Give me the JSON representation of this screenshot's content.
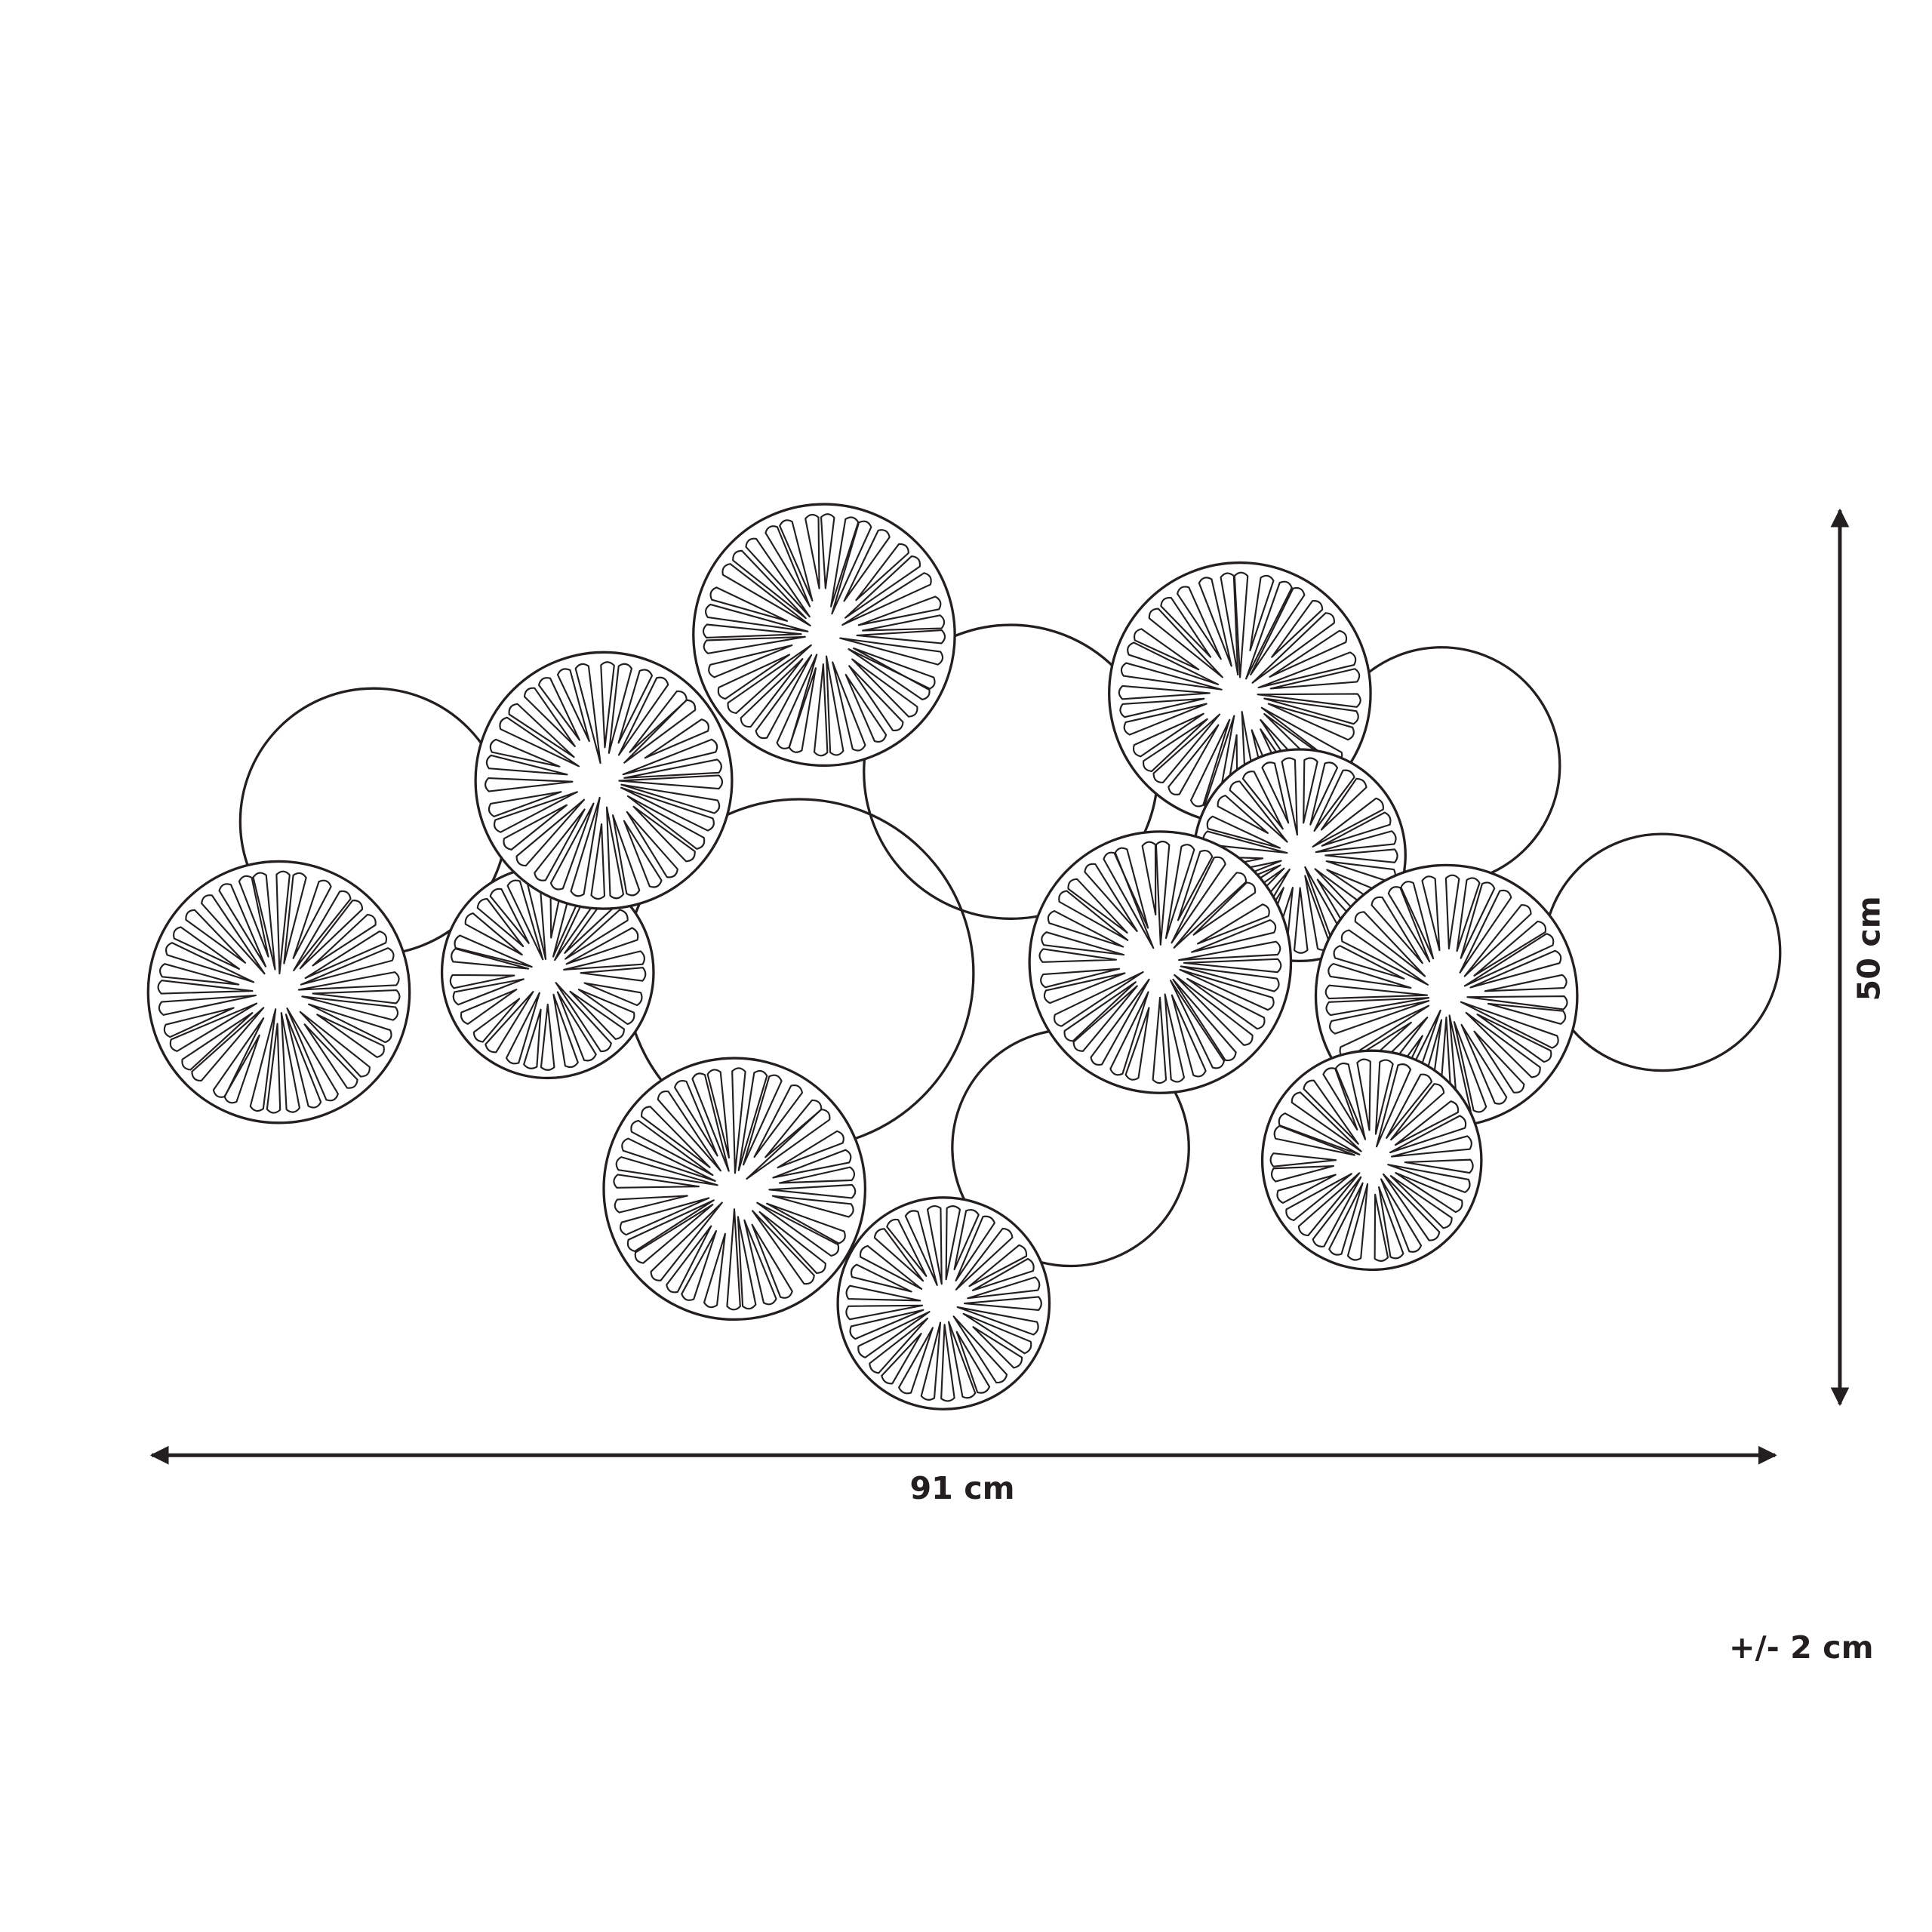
{
  "dimensions": {
    "width_label": "91 cm",
    "height_label": "50 cm",
    "tolerance_label": "+/- 2 cm"
  },
  "colors": {
    "line": "#231f20",
    "background": "#ffffff"
  },
  "product": {
    "plain_discs": 6,
    "patterned_discs": 11
  }
}
